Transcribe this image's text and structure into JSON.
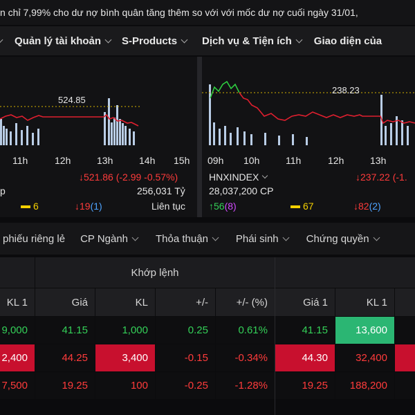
{
  "ticker": {
    "text": "n chỉ 7,99% cho dư nợ bình quân tăng thêm so với với mốc dư nợ cuối ngày 31/01,"
  },
  "nav": {
    "items": [
      {
        "label": "Quản lý tài khoản"
      },
      {
        "label": "S-Products"
      },
      {
        "label": "Dịch vụ & Tiện ích"
      },
      {
        "label": "Giao diện của"
      }
    ]
  },
  "left_panel": {
    "peak_label": "524.85",
    "time_labels": [
      "11h",
      "12h",
      "13h",
      "14h",
      "15h"
    ],
    "index_value": "↓521.86 (-2.99 -0.57%)",
    "value_traded": "256,031 Tỷ",
    "session": "Liên tục",
    "unchanged": "6",
    "decliners": "↓19",
    "floor": "(1)",
    "colors": {
      "price_line": "#e01f2f",
      "volume": "#b9cde6"
    }
  },
  "right_panel": {
    "peak_label": "238.23",
    "time_labels": [
      "09h",
      "10h",
      "11h",
      "12h",
      "13h"
    ],
    "index_name": "HNXINDEX",
    "volume": "28,037,200 CP",
    "index_value": "↓237.22 (-1.",
    "advancers": "↑56",
    "ceiling": "(8)",
    "unchanged": "67",
    "decliners": "↓82",
    "floor": "(2)",
    "colors": {
      "price_line_up": "#2ecc40",
      "price_line_down": "#e01f2f",
      "volume": "#b9cde6"
    }
  },
  "tabs": [
    {
      "label": "phiếu riêng lẻ",
      "has_dropdown": false
    },
    {
      "label": "CP Ngành",
      "has_dropdown": true
    },
    {
      "label": "Thỏa thuận",
      "has_dropdown": true
    },
    {
      "label": "Phái sinh",
      "has_dropdown": true
    },
    {
      "label": "Chứng quyền",
      "has_dropdown": true
    }
  ],
  "table": {
    "group_header": "Khớp lệnh",
    "headers": {
      "kl1_left": "KL 1",
      "price": "Giá",
      "volume": "KL",
      "change": "+/-",
      "change_pct": "+/- (%)",
      "ask_price1": "Giá 1",
      "ask_vol1": "KL 1"
    },
    "rows": [
      {
        "kl1_left": "9,000",
        "price": "41.15",
        "volume": "1,000",
        "change": "0.25",
        "change_pct": "0.61%",
        "ask_price1": "41.15",
        "ask_vol1": "13,600"
      },
      {
        "kl1_left": "2,400",
        "price": "44.25",
        "volume": "3,400",
        "change": "-0.15",
        "change_pct": "-0.34%",
        "ask_price1": "44.30",
        "ask_vol1": "32,400"
      },
      {
        "kl1_left": "7,500",
        "price": "19.25",
        "volume": "100",
        "change": "-0.25",
        "change_pct": "-1.28%",
        "ask_price1": "19.25",
        "ask_vol1": "188,200"
      }
    ]
  }
}
